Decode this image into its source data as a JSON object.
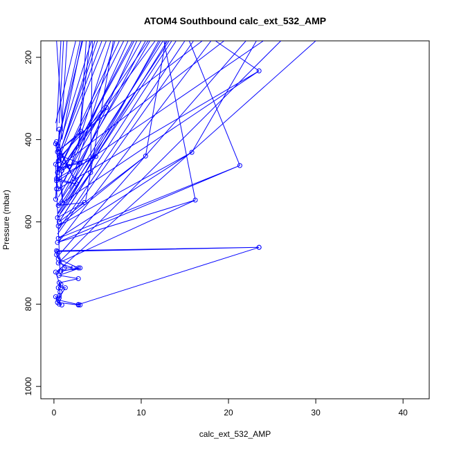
{
  "chart_data": {
    "type": "line",
    "title": "ATOM4 Southbound calc_ext_532_AMP",
    "xlabel": "calc_ext_532_AMP",
    "ylabel": "Pressure (mbar)",
    "xlim": [
      -1.5,
      43
    ],
    "ylim": [
      1030,
      160
    ],
    "y_reversed": true,
    "x_ticks": [
      0,
      10,
      20,
      30,
      40
    ],
    "y_ticks": [
      200,
      400,
      600,
      800,
      1000
    ],
    "color": "#0000ff",
    "grid": false,
    "series": [
      {
        "points": [
          [
            23.5,
            662
          ],
          [
            0.3,
            670
          ],
          [
            0.5,
            690
          ],
          [
            2.8,
            712
          ],
          [
            0.8,
            720
          ],
          [
            3.0,
            712
          ],
          [
            0.6,
            730
          ],
          [
            2.8,
            738
          ],
          [
            0.6,
            748
          ],
          [
            0.8,
            752
          ],
          [
            0.5,
            760
          ],
          [
            0.7,
            770
          ],
          [
            0.6,
            780
          ],
          [
            0.5,
            790
          ],
          [
            2.8,
            801
          ],
          [
            23.5,
            662
          ],
          [
            0.4,
            672
          ],
          [
            0.3,
            680
          ],
          [
            1.2,
            712
          ],
          [
            2.2,
            712
          ],
          [
            0.5,
            700
          ],
          [
            16.2,
            547
          ],
          [
            0.4,
            650
          ],
          [
            21.3,
            463
          ],
          [
            0.5,
            640
          ],
          [
            15.8,
            431
          ],
          [
            0.5,
            610
          ],
          [
            10.5,
            440
          ],
          [
            0.6,
            600
          ],
          [
            4.2,
            480
          ],
          [
            0.4,
            590
          ],
          [
            3.5,
            553
          ],
          [
            0.5,
            560
          ],
          [
            23.5,
            233
          ],
          [
            0.5,
            520
          ],
          [
            0.3,
            500
          ],
          [
            2.6,
            508
          ],
          [
            0.3,
            495
          ],
          [
            4.8,
            441
          ],
          [
            0.6,
            470
          ],
          [
            3.0,
            457
          ],
          [
            0.8,
            440
          ],
          [
            6.0,
            322
          ],
          [
            0.9,
            475
          ],
          [
            1.7,
            465
          ],
          [
            0.6,
            450
          ],
          [
            3.1,
            380
          ],
          [
            0.4,
            430
          ],
          [
            0.3,
            405
          ],
          [
            2.3,
            495
          ],
          [
            0.2,
            410
          ],
          [
            1.0,
            554
          ],
          [
            0.6,
            375
          ],
          [
            0.2,
            545
          ],
          [
            0.3,
            520
          ],
          [
            0.4,
            480
          ],
          [
            0.5,
            452
          ],
          [
            0.2,
            460
          ],
          [
            0.7,
            720
          ],
          [
            0.2,
            722
          ],
          [
            0.8,
            760
          ],
          [
            1.3,
            760
          ],
          [
            0.6,
            785
          ],
          [
            0.2,
            782
          ],
          [
            0.6,
            800
          ],
          [
            0.9,
            802
          ],
          [
            0.4,
            796
          ],
          [
            2.8,
            802
          ],
          [
            3.0,
            802
          ]
        ]
      },
      {
        "segments": [
          [
            [
              0.5,
              420
            ],
            [
              4.3,
              160
            ]
          ],
          [
            [
              0.7,
              430
            ],
            [
              5.0,
              160
            ]
          ],
          [
            [
              0.5,
              450
            ],
            [
              6.0,
              160
            ]
          ],
          [
            [
              0.6,
              470
            ],
            [
              7.5,
              160
            ]
          ],
          [
            [
              0.4,
              480
            ],
            [
              8.0,
              160
            ]
          ],
          [
            [
              0.5,
              500
            ],
            [
              9.0,
              160
            ]
          ],
          [
            [
              0.6,
              520
            ],
            [
              10.0,
              160
            ]
          ],
          [
            [
              0.5,
              540
            ],
            [
              11.0,
              160
            ]
          ],
          [
            [
              0.4,
              560
            ],
            [
              12.5,
              160
            ]
          ],
          [
            [
              0.5,
              580
            ],
            [
              13.5,
              160
            ]
          ],
          [
            [
              0.6,
              600
            ],
            [
              14.0,
              160
            ]
          ],
          [
            [
              0.4,
              630
            ],
            [
              16.0,
              160
            ]
          ],
          [
            [
              0.5,
              650
            ],
            [
              18.0,
              160
            ]
          ],
          [
            [
              0.6,
              680
            ],
            [
              22.0,
              160
            ]
          ],
          [
            [
              0.5,
              700
            ],
            [
              26.0,
              160
            ]
          ],
          [
            [
              0.4,
              720
            ],
            [
              30.0,
              160
            ]
          ],
          [
            [
              3.0,
              380
            ],
            [
              3.7,
              160
            ]
          ],
          [
            [
              2.8,
              420
            ],
            [
              4.1,
              160
            ]
          ],
          [
            [
              0.8,
              400
            ],
            [
              1.5,
              160
            ]
          ],
          [
            [
              0.3,
              380
            ],
            [
              0.8,
              160
            ]
          ],
          [
            [
              0.2,
              360
            ],
            [
              2.5,
              160
            ]
          ],
          [
            [
              0.6,
              390
            ],
            [
              3.0,
              160
            ]
          ],
          [
            [
              0.4,
              410
            ],
            [
              3.3,
              160
            ]
          ],
          [
            [
              2.5,
              470
            ],
            [
              7.0,
              160
            ]
          ],
          [
            [
              1.2,
              500
            ],
            [
              8.5,
              160
            ]
          ],
          [
            [
              0.9,
              540
            ],
            [
              10.5,
              160
            ]
          ],
          [
            [
              1.5,
              560
            ],
            [
              12.0,
              160
            ]
          ],
          [
            [
              0.7,
              580
            ],
            [
              13.0,
              160
            ]
          ],
          [
            [
              1.8,
              520
            ],
            [
              9.5,
              160
            ]
          ],
          [
            [
              2.0,
              460
            ],
            [
              6.5,
              160
            ]
          ],
          [
            [
              0.5,
              440
            ],
            [
              5.5,
              160
            ]
          ],
          [
            [
              0.3,
              460
            ],
            [
              4.7,
              160
            ]
          ],
          [
            [
              10.5,
              440
            ],
            [
              12.8,
              160
            ]
          ],
          [
            [
              15.8,
              431
            ],
            [
              23.2,
              160
            ]
          ],
          [
            [
              21.3,
              463
            ],
            [
              15.5,
              160
            ]
          ],
          [
            [
              16.2,
              547
            ],
            [
              12.6,
              160
            ]
          ],
          [
            [
              23.5,
              233
            ],
            [
              18.5,
              160
            ]
          ],
          [
            [
              3.6,
              553
            ],
            [
              6.8,
              160
            ]
          ],
          [
            [
              4.2,
              480
            ],
            [
              4.4,
              160
            ]
          ],
          [
            [
              0.6,
              360
            ],
            [
              1.1,
              160
            ]
          ],
          [
            [
              1.0,
              380
            ],
            [
              0.3,
              160
            ]
          ],
          [
            [
              0.9,
              400
            ],
            [
              3.2,
              160
            ]
          ],
          [
            [
              0.4,
              470
            ],
            [
              19.5,
              160
            ]
          ],
          [
            [
              0.5,
              500
            ],
            [
              24.0,
              160
            ]
          ],
          [
            [
              0.3,
              430
            ],
            [
              17.0,
              160
            ]
          ],
          [
            [
              0.7,
              560
            ],
            [
              13.2,
              160
            ]
          ],
          [
            [
              0.5,
              620
            ],
            [
              15.0,
              160
            ]
          ],
          [
            [
              0.4,
              580
            ],
            [
              12.2,
              160
            ]
          ],
          [
            [
              2.7,
              412
            ],
            [
              9.2,
              160
            ]
          ],
          [
            [
              1.6,
              446
            ],
            [
              10.8,
              160
            ]
          ],
          [
            [
              0.8,
              470
            ],
            [
              11.6,
              160
            ]
          ]
        ]
      }
    ]
  }
}
